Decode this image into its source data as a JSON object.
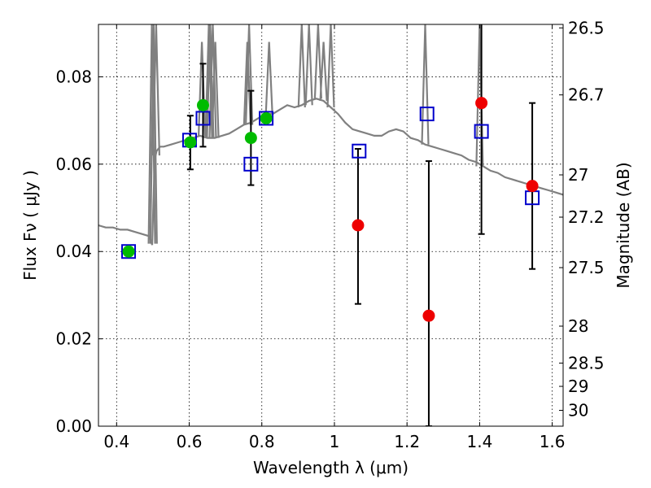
{
  "chart_data": {
    "type": "scatter",
    "xlabel": "Wavelength  λ (μm)",
    "ylabel": "Flux  Fν  ( μJy )",
    "y2label": "Magnitude (AB)",
    "xlim": [
      0.35,
      1.63
    ],
    "ylim": [
      0.0,
      0.092
    ],
    "grid": true,
    "x_ticks": [
      {
        "value": 0.4,
        "label": "0.4"
      },
      {
        "value": 0.6,
        "label": "0.6"
      },
      {
        "value": 0.8,
        "label": "0.8"
      },
      {
        "value": 1.0,
        "label": "1"
      },
      {
        "value": 1.2,
        "label": "1.2"
      },
      {
        "value": 1.4,
        "label": "1.4"
      },
      {
        "value": 1.6,
        "label": "1.6"
      }
    ],
    "y_ticks": [
      {
        "value": 0.0,
        "label": "0.00"
      },
      {
        "value": 0.02,
        "label": "0.02"
      },
      {
        "value": 0.04,
        "label": "0.04"
      },
      {
        "value": 0.06,
        "label": "0.06"
      },
      {
        "value": 0.08,
        "label": "0.08"
      }
    ],
    "mag_ticks": [
      {
        "value": 26.5,
        "label": "26.5"
      },
      {
        "value": 26.7,
        "label": "26.7"
      },
      {
        "value": 27.0,
        "label": "27"
      },
      {
        "value": 27.2,
        "label": "27.2"
      },
      {
        "value": 27.5,
        "label": "27.5"
      },
      {
        "value": 28.0,
        "label": "28"
      },
      {
        "value": 28.5,
        "label": "28.5"
      },
      {
        "value": 29.0,
        "label": "29"
      },
      {
        "value": 30.0,
        "label": "30"
      }
    ],
    "series": [
      {
        "kind": "line",
        "color": "#808080",
        "x": [
          0.35,
          0.37,
          0.39,
          0.41,
          0.43,
          0.45,
          0.47,
          0.49,
          0.498,
          0.505,
          0.51,
          0.515,
          0.52,
          0.53,
          0.55,
          0.57,
          0.59,
          0.61,
          0.63,
          0.65,
          0.67,
          0.69,
          0.71,
          0.73,
          0.75,
          0.77,
          0.79,
          0.81,
          0.83,
          0.85,
          0.87,
          0.89,
          0.91,
          0.93,
          0.95,
          0.97,
          0.99,
          1.01,
          1.03,
          1.05,
          1.07,
          1.09,
          1.11,
          1.13,
          1.15,
          1.17,
          1.19,
          1.21,
          1.23,
          1.25,
          1.27,
          1.29,
          1.31,
          1.33,
          1.35,
          1.37,
          1.39,
          1.41,
          1.43,
          1.45,
          1.47,
          1.49,
          1.51,
          1.53,
          1.55,
          1.57,
          1.59,
          1.61,
          1.63
        ],
        "y": [
          0.046,
          0.0455,
          0.0455,
          0.045,
          0.045,
          0.0445,
          0.044,
          0.0435,
          0.0415,
          0.061,
          0.063,
          0.0635,
          0.064,
          0.064,
          0.0645,
          0.065,
          0.0655,
          0.066,
          0.0665,
          0.066,
          0.066,
          0.0665,
          0.067,
          0.068,
          0.069,
          0.0695,
          0.0705,
          0.0715,
          0.0715,
          0.0725,
          0.0735,
          0.073,
          0.0735,
          0.0745,
          0.075,
          0.0745,
          0.073,
          0.0715,
          0.0695,
          0.068,
          0.0675,
          0.067,
          0.0665,
          0.0665,
          0.0675,
          0.068,
          0.0675,
          0.066,
          0.0655,
          0.0645,
          0.064,
          0.0635,
          0.063,
          0.0625,
          0.062,
          0.061,
          0.0605,
          0.0595,
          0.0585,
          0.058,
          0.057,
          0.0565,
          0.056,
          0.0555,
          0.055,
          0.0545,
          0.054,
          0.0535,
          0.053
        ]
      },
      {
        "kind": "spikes",
        "color": "#808080",
        "x": [
          0.497,
          0.502,
          0.509,
          0.635,
          0.654,
          0.658,
          0.665,
          0.672,
          0.76,
          0.765,
          0.82,
          0.91,
          0.93,
          0.955,
          0.97,
          0.99,
          1.25,
          1.4
        ],
        "base": [
          0.0418,
          0.0418,
          0.062,
          0.0665,
          0.066,
          0.066,
          0.066,
          0.066,
          0.069,
          0.069,
          0.0715,
          0.073,
          0.0735,
          0.075,
          0.0745,
          0.073,
          0.0645,
          0.0595
        ],
        "top": [
          0.092,
          0.092,
          0.092,
          0.088,
          0.092,
          0.092,
          0.092,
          0.088,
          0.088,
          0.092,
          0.088,
          0.092,
          0.092,
          0.092,
          0.088,
          0.092,
          0.092,
          0.092
        ]
      },
      {
        "kind": "errorbar",
        "color": "#000000",
        "x": [
          0.603,
          0.638,
          0.77,
          1.065,
          1.26,
          1.405,
          1.545
        ],
        "y": [
          0.065,
          0.073,
          0.066,
          0.046,
          0.025,
          0.074,
          0.055
        ],
        "lo": [
          0.0588,
          0.064,
          0.0552,
          0.028,
          0.0,
          0.044,
          0.036
        ],
        "hi": [
          0.0711,
          0.083,
          0.0768,
          0.0635,
          0.0607,
          0.093,
          0.074
        ]
      },
      {
        "kind": "squares",
        "color": "#0000cc",
        "x": [
          0.433,
          0.601,
          0.638,
          0.77,
          0.812,
          1.068,
          1.255,
          1.405,
          1.545
        ],
        "y": [
          0.04,
          0.0655,
          0.0705,
          0.06,
          0.0705,
          0.063,
          0.0715,
          0.0675,
          0.0523
        ]
      },
      {
        "kind": "dots",
        "color": "#00bb00",
        "x": [
          0.433,
          0.603,
          0.638,
          0.77,
          0.812
        ],
        "y": [
          0.04,
          0.065,
          0.0735,
          0.066,
          0.0705
        ]
      },
      {
        "kind": "dots",
        "color": "#ee0000",
        "x": [
          1.065,
          1.26,
          1.405,
          1.545
        ],
        "y": [
          0.046,
          0.0253,
          0.074,
          0.055
        ]
      }
    ]
  }
}
